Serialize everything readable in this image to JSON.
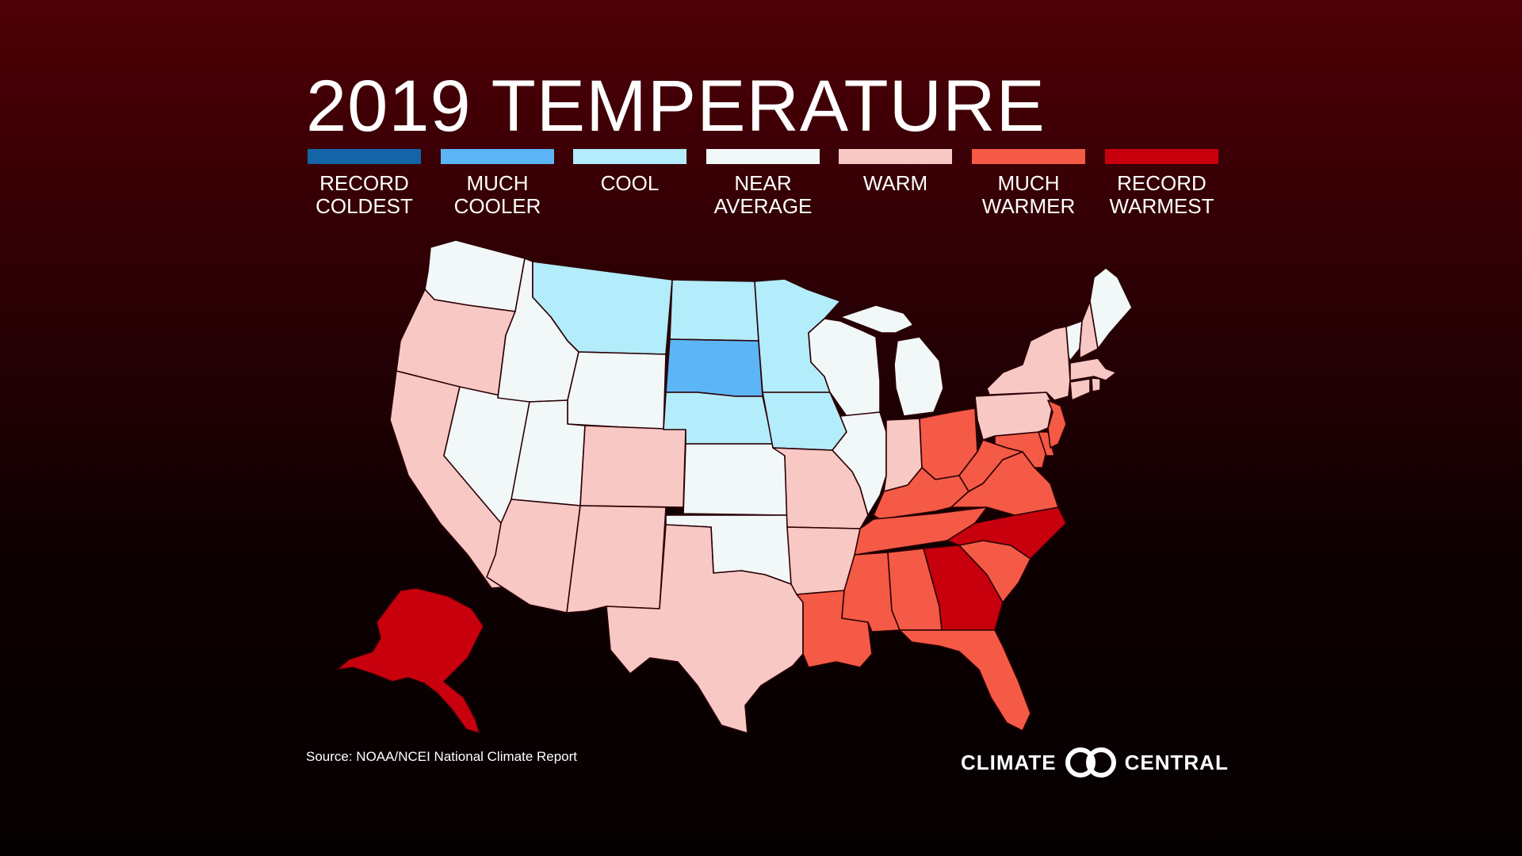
{
  "title": "2019 TEMPERATURE",
  "legend": [
    {
      "key": "record_coldest",
      "label": "RECORD\nCOLDEST",
      "color": "#1465a8"
    },
    {
      "key": "much_cooler",
      "label": "MUCH\nCOOLER",
      "color": "#5cb5f5"
    },
    {
      "key": "cool",
      "label": "COOL",
      "color": "#b3ecfb"
    },
    {
      "key": "near_average",
      "label": "NEAR\nAVERAGE",
      "color": "#f2f7f8"
    },
    {
      "key": "warm",
      "label": "WARM",
      "color": "#f8c8c5"
    },
    {
      "key": "much_warmer",
      "label": "MUCH\nWARMER",
      "color": "#f45a46"
    },
    {
      "key": "record_warmest",
      "label": "RECORD\nWARMEST",
      "color": "#c8000d"
    }
  ],
  "states": {
    "WA": "near_average",
    "OR": "warm",
    "CA": "warm",
    "NV": "near_average",
    "ID": "near_average",
    "MT": "cool",
    "WY": "near_average",
    "UT": "near_average",
    "AZ": "warm",
    "CO": "warm",
    "NM": "warm",
    "ND": "cool",
    "SD": "much_cooler",
    "NE": "cool",
    "KS": "near_average",
    "OK": "near_average",
    "TX": "warm",
    "MN": "cool",
    "IA": "cool",
    "MO": "warm",
    "AR": "warm",
    "LA": "much_warmer",
    "WI": "near_average",
    "IL": "near_average",
    "MI": "near_average",
    "IN": "warm",
    "OH": "much_warmer",
    "KY": "much_warmer",
    "TN": "much_warmer",
    "MS": "much_warmer",
    "AL": "much_warmer",
    "GA": "record_warmest",
    "FL": "much_warmer",
    "SC": "much_warmer",
    "NC": "record_warmest",
    "VA": "much_warmer",
    "WV": "much_warmer",
    "MD": "much_warmer",
    "DE": "much_warmer",
    "NJ": "much_warmer",
    "PA": "warm",
    "NY": "warm",
    "CT": "warm",
    "RI": "warm",
    "MA": "warm",
    "VT": "near_average",
    "NH": "warm",
    "ME": "near_average",
    "AK": "record_warmest"
  },
  "source": "Source: NOAA/NCEI National Climate Report",
  "logo": {
    "left": "CLIMATE",
    "right": "CENTRAL"
  }
}
